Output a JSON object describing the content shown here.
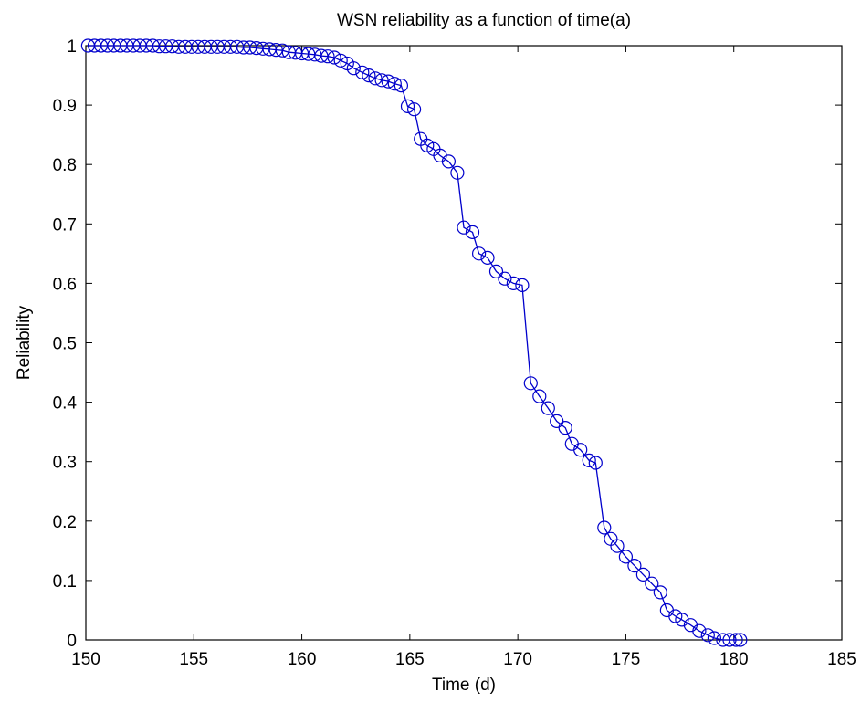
{
  "chart_data": {
    "type": "line",
    "title": "WSN reliability as a function of time(a)",
    "xlabel": "Time (d)",
    "ylabel": "Reliability",
    "xlim": [
      150,
      185
    ],
    "ylim": [
      0,
      1
    ],
    "xticks": [
      150,
      155,
      160,
      165,
      170,
      175,
      180,
      185
    ],
    "yticks": [
      0,
      0.1,
      0.2,
      0.3,
      0.4,
      0.5,
      0.6,
      0.7,
      0.8,
      0.9,
      1
    ],
    "ytick_labels": [
      "0",
      "0.1",
      "0.2",
      "0.3",
      "0.4",
      "0.5",
      "0.6",
      "0.7",
      "0.8",
      "0.9",
      "1"
    ],
    "grid": false,
    "legend": "none",
    "color": "#0000CC",
    "marker": "circle",
    "series": [
      {
        "x": [
          150.1,
          150.4,
          150.7,
          151.0,
          151.3,
          151.6,
          151.9,
          152.2,
          152.5,
          152.8,
          153.1,
          153.4,
          153.7,
          154.0,
          154.3,
          154.6,
          154.9,
          155.2,
          155.5,
          155.8,
          156.1,
          156.4,
          156.7,
          157.0,
          157.3,
          157.6,
          157.9,
          158.2,
          158.5,
          158.8,
          159.1,
          159.4,
          159.7,
          160.0,
          160.3,
          160.6,
          160.9,
          161.2,
          161.5,
          161.8,
          162.1,
          162.4,
          162.8,
          163.1,
          163.4,
          163.7,
          164.0,
          164.3,
          164.6,
          164.9,
          165.2,
          165.5,
          165.8,
          166.1,
          166.4,
          166.8,
          167.2,
          167.5,
          167.9,
          168.2,
          168.6,
          169.0,
          169.4,
          169.8,
          170.2,
          170.6,
          171.0,
          171.4,
          171.8,
          172.2,
          172.5,
          172.9,
          173.3,
          173.6,
          174.0,
          174.3,
          174.6,
          175.0,
          175.4,
          175.8,
          176.2,
          176.6,
          176.9,
          177.3,
          177.6,
          178.0,
          178.4,
          178.8,
          179.1,
          179.5,
          179.8,
          180.1,
          180.3
        ],
        "y": [
          1.0,
          1.0,
          1.0,
          1.0,
          1.0,
          1.0,
          1.0,
          1.0,
          1.0,
          1.0,
          1.0,
          0.999,
          0.999,
          0.999,
          0.998,
          0.998,
          0.998,
          0.998,
          0.998,
          0.998,
          0.998,
          0.998,
          0.998,
          0.998,
          0.997,
          0.997,
          0.996,
          0.995,
          0.994,
          0.993,
          0.992,
          0.989,
          0.988,
          0.987,
          0.986,
          0.985,
          0.983,
          0.982,
          0.98,
          0.975,
          0.97,
          0.962,
          0.955,
          0.95,
          0.945,
          0.942,
          0.94,
          0.936,
          0.933,
          0.898,
          0.893,
          0.843,
          0.832,
          0.826,
          0.815,
          0.805,
          0.786,
          0.694,
          0.686,
          0.65,
          0.643,
          0.62,
          0.608,
          0.6,
          0.597,
          0.432,
          0.41,
          0.39,
          0.368,
          0.357,
          0.33,
          0.32,
          0.302,
          0.298,
          0.189,
          0.17,
          0.158,
          0.14,
          0.125,
          0.11,
          0.095,
          0.08,
          0.05,
          0.04,
          0.034,
          0.025,
          0.015,
          0.008,
          0.003,
          0.0,
          0.0,
          0.0,
          0.0
        ]
      }
    ]
  }
}
